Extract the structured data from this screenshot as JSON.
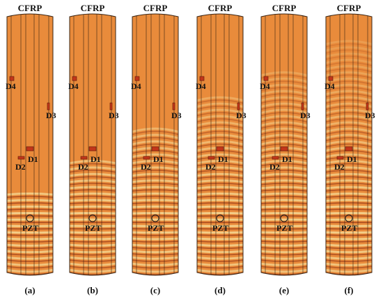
{
  "colors": {
    "plate_base": "#e98b3b",
    "wave_light": "#f4d08a",
    "wave_dark": "#8e2f12",
    "line": "#3a2413"
  },
  "panels": [
    {
      "title": "CFRP",
      "caption": "(a)",
      "labels": {
        "d1": "D1",
        "d2": "D2",
        "d3": "D3",
        "d4": "D4",
        "pzt": "PZT"
      },
      "wave_front": 0.15
    },
    {
      "title": "CFRP",
      "caption": "(b)",
      "labels": {
        "d1": "D1",
        "d2": "D2",
        "d3": "D3",
        "d4": "D4",
        "pzt": "PZT"
      },
      "wave_front": 0.3
    },
    {
      "title": "CFRP",
      "caption": "(c)",
      "labels": {
        "d1": "D1",
        "d2": "D2",
        "d3": "D3",
        "d4": "D4",
        "pzt": "PZT"
      },
      "wave_front": 0.45
    },
    {
      "title": "CFRP",
      "caption": "(d)",
      "labels": {
        "d1": "D1",
        "d2": "D2",
        "d3": "D3",
        "d4": "D4",
        "pzt": "PZT"
      },
      "wave_front": 0.6
    },
    {
      "title": "CFRP",
      "caption": "(e)",
      "labels": {
        "d1": "D1",
        "d2": "D2",
        "d3": "D3",
        "d4": "D4",
        "pzt": "PZT"
      },
      "wave_front": 0.75
    },
    {
      "title": "CFRP",
      "caption": "(f)",
      "labels": {
        "d1": "D1",
        "d2": "D2",
        "d3": "D3",
        "d4": "D4",
        "pzt": "PZT"
      },
      "wave_front": 0.9
    }
  ]
}
